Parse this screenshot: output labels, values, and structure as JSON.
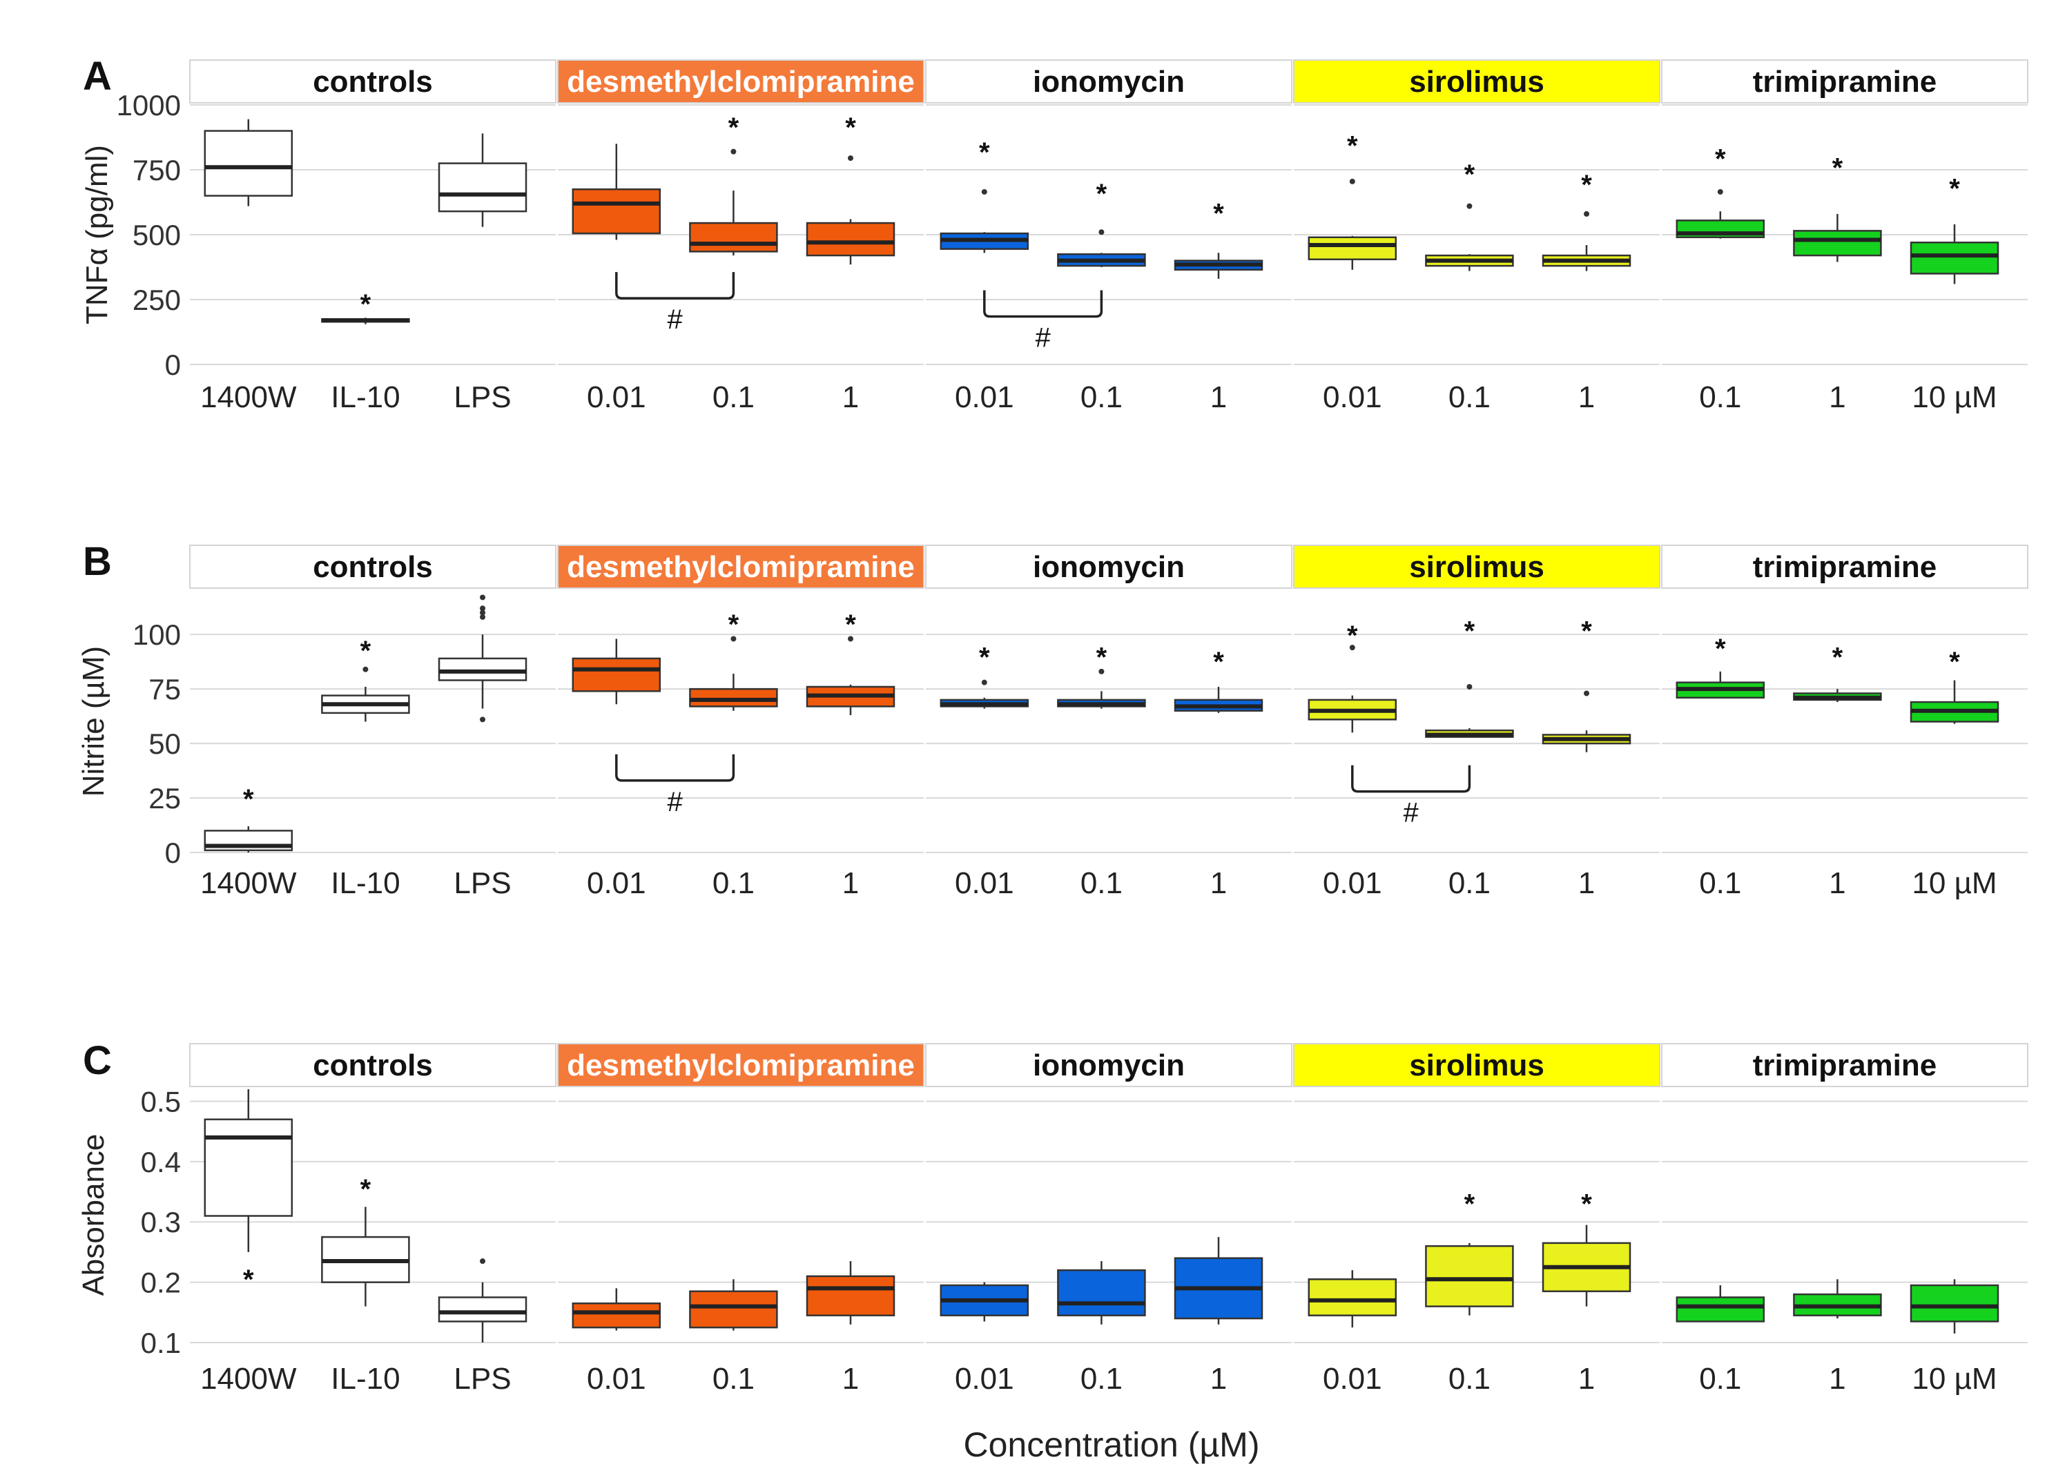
{
  "figure": {
    "xlabel": "Concentration (µM)",
    "facets": [
      {
        "name": "controls",
        "strip_color": "#ffffff",
        "text_color": "#111111"
      },
      {
        "name": "desmethylclomipramine",
        "strip_color": "#f47a3a",
        "text_color": "#ffffff"
      },
      {
        "name": "ionomycin",
        "strip_color": "#ffffff",
        "text_color": "#111111"
      },
      {
        "name": "sirolimus",
        "strip_color": "#ffff00",
        "text_color": "#111111"
      },
      {
        "name": "trimipramine",
        "strip_color": "#ffffff",
        "text_color": "#111111"
      }
    ],
    "colors": {
      "controls": "#ffffff",
      "desmethylclomipramine": "#f05a0c",
      "ionomycin": "#0a64dc",
      "sirolimus": "#e8f01e",
      "trimipramine": "#14d21e",
      "grid": "#d9d9d9",
      "strip_border": "#d4d4d4"
    }
  },
  "chart_data": [
    {
      "panel": "A",
      "type": "box",
      "ylabel": "TNFα (pg/ml)",
      "ylim": [
        0,
        1000
      ],
      "yticks": [
        0,
        250,
        500,
        750,
        1000
      ],
      "ytick_labels": [
        "0",
        "250",
        "500",
        "750",
        "1000"
      ],
      "groups": [
        {
          "facet": "controls",
          "categories": [
            "1400W",
            "IL-10",
            "LPS"
          ],
          "boxes": [
            {
              "min": 610,
              "q1": 650,
              "median": 760,
              "q3": 900,
              "max": 945,
              "outliers": [],
              "star": null
            },
            {
              "min": 155,
              "q1": 165,
              "median": 170,
              "q3": 175,
              "max": 180,
              "outliers": [],
              "star": 245
            },
            {
              "min": 530,
              "q1": 590,
              "median": 655,
              "q3": 775,
              "max": 890,
              "outliers": [],
              "star": null
            }
          ]
        },
        {
          "facet": "desmethylclomipramine",
          "categories": [
            "0.01",
            "0.1",
            "1"
          ],
          "boxes": [
            {
              "min": 480,
              "q1": 505,
              "median": 620,
              "q3": 675,
              "max": 850,
              "outliers": [],
              "star": null
            },
            {
              "min": 420,
              "q1": 435,
              "median": 465,
              "q3": 545,
              "max": 670,
              "outliers": [
                820
              ],
              "star": 925
            },
            {
              "min": 385,
              "q1": 420,
              "median": 470,
              "q3": 545,
              "max": 560,
              "outliers": [
                795
              ],
              "star": 925
            }
          ]
        },
        {
          "facet": "ionomycin",
          "categories": [
            "0.01",
            "0.1",
            "1"
          ],
          "boxes": [
            {
              "min": 430,
              "q1": 445,
              "median": 480,
              "q3": 505,
              "max": 510,
              "outliers": [
                665
              ],
              "star": 830
            },
            {
              "min": 375,
              "q1": 380,
              "median": 400,
              "q3": 425,
              "max": 430,
              "outliers": [
                510
              ],
              "star": 670
            },
            {
              "min": 330,
              "q1": 365,
              "median": 385,
              "q3": 400,
              "max": 430,
              "outliers": [],
              "star": 595
            }
          ]
        },
        {
          "facet": "sirolimus",
          "categories": [
            "0.01",
            "0.1",
            "1"
          ],
          "boxes": [
            {
              "min": 365,
              "q1": 405,
              "median": 460,
              "q3": 490,
              "max": 495,
              "outliers": [
                705
              ],
              "star": 855
            },
            {
              "min": 360,
              "q1": 380,
              "median": 400,
              "q3": 420,
              "max": 425,
              "outliers": [
                610
              ],
              "star": 745
            },
            {
              "min": 360,
              "q1": 380,
              "median": 400,
              "q3": 420,
              "max": 460,
              "outliers": [
                580
              ],
              "star": 705
            }
          ]
        },
        {
          "facet": "trimipramine",
          "categories": [
            "0.1",
            "1",
            "10 µM"
          ],
          "boxes": [
            {
              "min": 485,
              "q1": 490,
              "median": 505,
              "q3": 555,
              "max": 590,
              "outliers": [
                665
              ],
              "star": 805
            },
            {
              "min": 395,
              "q1": 420,
              "median": 480,
              "q3": 515,
              "max": 580,
              "outliers": [],
              "star": 770
            },
            {
              "min": 310,
              "q1": 350,
              "median": 420,
              "q3": 470,
              "max": 540,
              "outliers": [],
              "star": 690
            }
          ]
        }
      ],
      "brackets": [
        {
          "facet": "desmethylclomipramine",
          "from": 0,
          "to": 1,
          "y": 255,
          "label": "#"
        },
        {
          "facet": "ionomycin",
          "from": 0,
          "to": 1,
          "y": 185,
          "label": "#"
        }
      ]
    },
    {
      "panel": "B",
      "type": "box",
      "ylabel": "Nitrite (µM)",
      "ylim": [
        0,
        120
      ],
      "yticks": [
        0,
        25,
        50,
        75,
        100
      ],
      "ytick_labels": [
        "0",
        "25",
        "50",
        "75",
        "100"
      ],
      "groups": [
        {
          "facet": "controls",
          "categories": [
            "1400W",
            "IL-10",
            "LPS"
          ],
          "boxes": [
            {
              "min": 0,
              "q1": 1,
              "median": 3,
              "q3": 10,
              "max": 12,
              "outliers": [],
              "star": 26
            },
            {
              "min": 60,
              "q1": 64,
              "median": 68,
              "q3": 72,
              "max": 76,
              "outliers": [
                84
              ],
              "star": 94
            },
            {
              "min": 66,
              "q1": 79,
              "median": 83,
              "q3": 89,
              "max": 100,
              "outliers": [
                61,
                108,
                110,
                112,
                117
              ],
              "star": null
            }
          ]
        },
        {
          "facet": "desmethylclomipramine",
          "categories": [
            "0.01",
            "0.1",
            "1"
          ],
          "boxes": [
            {
              "min": 68,
              "q1": 74,
              "median": 84,
              "q3": 89,
              "max": 98,
              "outliers": [],
              "star": null
            },
            {
              "min": 65,
              "q1": 67,
              "median": 70,
              "q3": 75,
              "max": 82,
              "outliers": [
                98
              ],
              "star": 106
            },
            {
              "min": 63,
              "q1": 67,
              "median": 72,
              "q3": 76,
              "max": 77,
              "outliers": [
                98
              ],
              "star": 106
            }
          ]
        },
        {
          "facet": "ionomycin",
          "categories": [
            "0.01",
            "0.1",
            "1"
          ],
          "boxes": [
            {
              "min": 66,
              "q1": 67,
              "median": 68,
              "q3": 70,
              "max": 71,
              "outliers": [
                78
              ],
              "star": 91
            },
            {
              "min": 66,
              "q1": 67,
              "median": 68,
              "q3": 70,
              "max": 74,
              "outliers": [
                83
              ],
              "star": 91
            },
            {
              "min": 64,
              "q1": 65,
              "median": 67,
              "q3": 70,
              "max": 76,
              "outliers": [],
              "star": 89
            }
          ]
        },
        {
          "facet": "sirolimus",
          "categories": [
            "0.01",
            "0.1",
            "1"
          ],
          "boxes": [
            {
              "min": 55,
              "q1": 61,
              "median": 65,
              "q3": 70,
              "max": 72,
              "outliers": [
                94
              ],
              "star": 101
            },
            {
              "min": 53,
              "q1": 53,
              "median": 54,
              "q3": 56,
              "max": 57,
              "outliers": [
                76
              ],
              "star": 103
            },
            {
              "min": 46,
              "q1": 50,
              "median": 52,
              "q3": 54,
              "max": 56,
              "outliers": [
                73
              ],
              "star": 103
            }
          ]
        },
        {
          "facet": "trimipramine",
          "categories": [
            "0.1",
            "1",
            "10 µM"
          ],
          "boxes": [
            {
              "min": 71,
              "q1": 71,
              "median": 75,
              "q3": 78,
              "max": 83,
              "outliers": [],
              "star": 95
            },
            {
              "min": 69,
              "q1": 70,
              "median": 71,
              "q3": 73,
              "max": 75,
              "outliers": [],
              "star": 91
            },
            {
              "min": 59,
              "q1": 60,
              "median": 65,
              "q3": 69,
              "max": 79,
              "outliers": [],
              "star": 89
            }
          ]
        }
      ],
      "brackets": [
        {
          "facet": "desmethylclomipramine",
          "from": 0,
          "to": 1,
          "y": 33,
          "label": "#"
        },
        {
          "facet": "sirolimus",
          "from": 0,
          "to": 1,
          "y": 28,
          "label": "#"
        }
      ]
    },
    {
      "panel": "C",
      "type": "box",
      "ylabel": "Absorbance",
      "ylim": [
        0.1,
        0.52
      ],
      "yticks": [
        0.1,
        0.2,
        0.3,
        0.4,
        0.5
      ],
      "ytick_labels": [
        "0.1",
        "0.2",
        "0.3",
        "0.4",
        "0.5"
      ],
      "groups": [
        {
          "facet": "controls",
          "categories": [
            "1400W",
            "IL-10",
            "LPS"
          ],
          "boxes": [
            {
              "min": 0.25,
              "q1": 0.31,
              "median": 0.44,
              "q3": 0.47,
              "max": 0.52,
              "outliers": [],
              "star": 0.21
            },
            {
              "min": 0.16,
              "q1": 0.2,
              "median": 0.235,
              "q3": 0.275,
              "max": 0.325,
              "outliers": [],
              "star": 0.36
            },
            {
              "min": 0.1,
              "q1": 0.135,
              "median": 0.15,
              "q3": 0.175,
              "max": 0.2,
              "outliers": [
                0.235
              ],
              "star": null
            }
          ]
        },
        {
          "facet": "desmethylclomipramine",
          "categories": [
            "0.01",
            "0.1",
            "1"
          ],
          "boxes": [
            {
              "min": 0.12,
              "q1": 0.125,
              "median": 0.15,
              "q3": 0.165,
              "max": 0.19,
              "outliers": [],
              "star": null
            },
            {
              "min": 0.12,
              "q1": 0.125,
              "median": 0.16,
              "q3": 0.185,
              "max": 0.205,
              "outliers": [],
              "star": null
            },
            {
              "min": 0.13,
              "q1": 0.145,
              "median": 0.19,
              "q3": 0.21,
              "max": 0.235,
              "outliers": [],
              "star": null
            }
          ]
        },
        {
          "facet": "ionomycin",
          "categories": [
            "0.01",
            "0.1",
            "1"
          ],
          "boxes": [
            {
              "min": 0.135,
              "q1": 0.145,
              "median": 0.17,
              "q3": 0.195,
              "max": 0.2,
              "outliers": [],
              "star": null
            },
            {
              "min": 0.13,
              "q1": 0.145,
              "median": 0.165,
              "q3": 0.22,
              "max": 0.235,
              "outliers": [],
              "star": null
            },
            {
              "min": 0.13,
              "q1": 0.14,
              "median": 0.19,
              "q3": 0.24,
              "max": 0.275,
              "outliers": [],
              "star": null
            }
          ]
        },
        {
          "facet": "sirolimus",
          "categories": [
            "0.01",
            "0.1",
            "1"
          ],
          "boxes": [
            {
              "min": 0.125,
              "q1": 0.145,
              "median": 0.17,
              "q3": 0.205,
              "max": 0.22,
              "outliers": [],
              "star": null
            },
            {
              "min": 0.145,
              "q1": 0.16,
              "median": 0.205,
              "q3": 0.26,
              "max": 0.265,
              "outliers": [],
              "star": 0.335
            },
            {
              "min": 0.16,
              "q1": 0.185,
              "median": 0.225,
              "q3": 0.265,
              "max": 0.295,
              "outliers": [],
              "star": 0.335
            }
          ]
        },
        {
          "facet": "trimipramine",
          "categories": [
            "0.1",
            "1",
            "10 µM"
          ],
          "boxes": [
            {
              "min": 0.135,
              "q1": 0.135,
              "median": 0.16,
              "q3": 0.175,
              "max": 0.195,
              "outliers": [],
              "star": null
            },
            {
              "min": 0.14,
              "q1": 0.145,
              "median": 0.16,
              "q3": 0.18,
              "max": 0.205,
              "outliers": [],
              "star": null
            },
            {
              "min": 0.115,
              "q1": 0.135,
              "median": 0.16,
              "q3": 0.195,
              "max": 0.205,
              "outliers": [],
              "star": null
            }
          ]
        }
      ],
      "brackets": []
    }
  ]
}
